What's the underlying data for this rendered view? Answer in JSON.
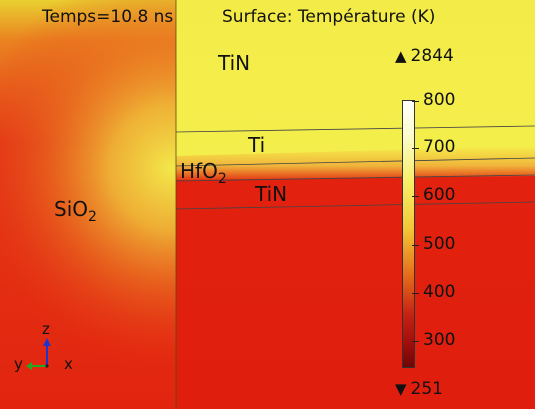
{
  "title": {
    "time_text": "Temps=10.8 ns",
    "surface_text": "Surface: Température (K)"
  },
  "regions": {
    "tin_top": "TiN",
    "ti": "Ti",
    "hfo2_main": "HfO",
    "hfo2_sub": "2",
    "tin_bottom": "TiN",
    "sio2_main": "SiO",
    "sio2_sub": "2"
  },
  "colorbar": {
    "max_marker": "2844",
    "min_marker": "251",
    "ticks": [
      "800",
      "700",
      "600",
      "500",
      "400",
      "300"
    ],
    "colors": {
      "low": "#6e0606",
      "mid": "#e46a1a",
      "high": "#ffffff"
    }
  },
  "axes_triad": {
    "z": "z",
    "y": "y",
    "x": "x"
  },
  "field_colors": {
    "hot_yellow": "#f3ec4a",
    "hot_band": "#f7f04e",
    "red": "#e1200f",
    "deep_red": "#d0170b"
  }
}
